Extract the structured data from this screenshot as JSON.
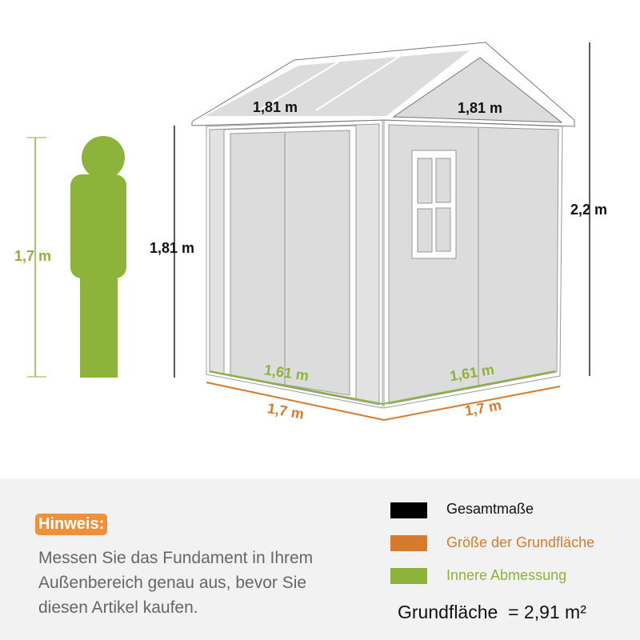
{
  "dimensions": {
    "person_height": "1,7 m",
    "roof_left": "1,81 m",
    "roof_right": "1,81 m",
    "wall_height": "1,81 m",
    "total_height": "2,2 m",
    "inner_left": "1,61 m",
    "inner_right": "1,61 m",
    "base_left": "1,7 m",
    "base_right": "1,7 m"
  },
  "note": {
    "title": "Hinweis:",
    "text": "Messen Sie das Fundament in Ihrem Außenbereich genau aus, bevor Sie diesen Artikel kaufen."
  },
  "legend": [
    {
      "label": "Gesamtmaße",
      "color": "#000000"
    },
    {
      "label": "Größe der Grundfläche",
      "color": "#d67b2c"
    },
    {
      "label": "Innere Abmessung",
      "color": "#8db33a"
    }
  ],
  "area": "Grundfläche  = 2,91 m²",
  "colors": {
    "black": "#111111",
    "orange": "#d67b2c",
    "green": "#8db33a",
    "hint_bg": "#f0913a"
  }
}
